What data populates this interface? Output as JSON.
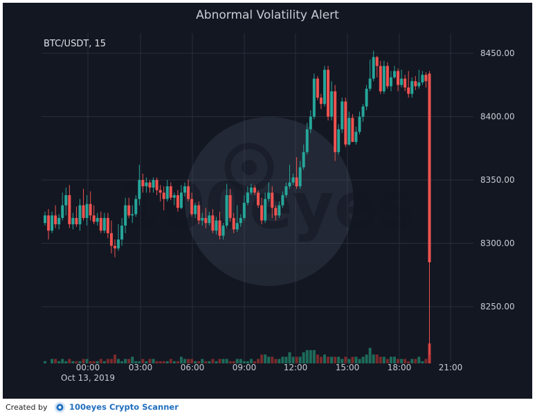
{
  "chart_data": {
    "type": "candlestick",
    "title": "Abnormal Volatility Alert",
    "symbol_label": "BTC/USDT, 15",
    "date_label": "Oct 13, 2019",
    "y_ticks": [
      "8450.00",
      "8400.00",
      "8350.00",
      "8300.00",
      "8250.00"
    ],
    "y_tick_values": [
      8450,
      8400,
      8350,
      8300,
      8250
    ],
    "x_ticks": [
      "00:00",
      "03:00",
      "06:00",
      "09:00",
      "12:00",
      "15:00",
      "18:00",
      "21:00"
    ],
    "ylim": [
      8209,
      8456
    ],
    "grid": true,
    "watermark": "100eyes",
    "colors": {
      "up": "#26a69a",
      "down": "#ef5350",
      "background": "#131722",
      "grid": "#2a2e39",
      "text": "#c9ccd3"
    },
    "candles": [
      [
        8316,
        8322,
        8314,
        8325,
        8311,
        1
      ],
      [
        8322,
        8310,
        8303,
        8327,
        8301,
        0
      ],
      [
        8310,
        8322,
        8308,
        8325,
        8305,
        2
      ],
      [
        8322,
        8315,
        8312,
        8330,
        8310,
        2
      ],
      [
        8315,
        8320,
        8311,
        8323,
        8307,
        1
      ],
      [
        8320,
        8330,
        8318,
        8340,
        8316,
        2
      ],
      [
        8330,
        8338,
        8322,
        8344,
        8320,
        1
      ],
      [
        8338,
        8315,
        8312,
        8346,
        8310,
        2
      ],
      [
        8315,
        8320,
        8311,
        8324,
        8311,
        1
      ],
      [
        8320,
        8315,
        8313,
        8329,
        8310,
        1
      ],
      [
        8315,
        8330,
        8310,
        8335,
        8308,
        1
      ],
      [
        8330,
        8320,
        8318,
        8343,
        8316,
        2
      ],
      [
        8320,
        8331,
        8314,
        8338,
        8312,
        2
      ],
      [
        8331,
        8322,
        8318,
        8341,
        8316,
        1
      ],
      [
        8322,
        8317,
        8315,
        8330,
        8312,
        1
      ],
      [
        8317,
        8320,
        8314,
        8324,
        8312,
        1
      ],
      [
        8320,
        8310,
        8308,
        8325,
        8305,
        2
      ],
      [
        8310,
        8320,
        8308,
        8324,
        8306,
        1
      ],
      [
        8320,
        8308,
        8304,
        8324,
        8302,
        2
      ],
      [
        8308,
        8298,
        8292,
        8318,
        8290,
        2
      ],
      [
        8298,
        8296,
        8289,
        8303,
        8278,
        4
      ],
      [
        8296,
        8303,
        8294,
        8315,
        8292,
        2
      ],
      [
        8303,
        8314,
        8298,
        8320,
        8296,
        1
      ],
      [
        8314,
        8330,
        8308,
        8336,
        8306,
        2
      ],
      [
        8330,
        8322,
        8320,
        8336,
        8318,
        2
      ],
      [
        8322,
        8323,
        8316,
        8330,
        8314,
        3
      ],
      [
        8323,
        8335,
        8321,
        8338,
        8320,
        1
      ],
      [
        8335,
        8350,
        8330,
        8362,
        8328,
        1
      ],
      [
        8350,
        8345,
        8340,
        8355,
        8338,
        2
      ],
      [
        8345,
        8348,
        8340,
        8352,
        8338,
        1
      ],
      [
        8348,
        8344,
        8340,
        8350,
        8338,
        2
      ],
      [
        8344,
        8350,
        8340,
        8352,
        8338,
        2
      ],
      [
        8350,
        8342,
        8338,
        8352,
        8338,
        1
      ],
      [
        8342,
        8340,
        8333,
        8346,
        8332,
        1
      ],
      [
        8340,
        8335,
        8326,
        8345,
        8325,
        1
      ],
      [
        8335,
        8345,
        8333,
        8350,
        8331,
        1
      ],
      [
        8345,
        8336,
        8334,
        8348,
        8332,
        2
      ],
      [
        8336,
        8338,
        8330,
        8340,
        8328,
        1
      ],
      [
        8338,
        8328,
        8325,
        8342,
        8323,
        1
      ],
      [
        8328,
        8340,
        8327,
        8346,
        8325,
        3
      ],
      [
        8340,
        8345,
        8337,
        8348,
        8334,
        2
      ],
      [
        8345,
        8335,
        8333,
        8350,
        8330,
        2
      ],
      [
        8335,
        8323,
        8321,
        8340,
        8319,
        2
      ],
      [
        8323,
        8330,
        8320,
        8332,
        8318,
        1
      ],
      [
        8330,
        8318,
        8315,
        8333,
        8313,
        1
      ],
      [
        8318,
        8320,
        8314,
        8324,
        8312,
        2
      ],
      [
        8320,
        8316,
        8312,
        8328,
        8310,
        1
      ],
      [
        8316,
        8322,
        8314,
        8325,
        8312,
        1
      ],
      [
        8322,
        8310,
        8308,
        8327,
        8306,
        2
      ],
      [
        8310,
        8318,
        8307,
        8321,
        8305,
        1
      ],
      [
        8318,
        8306,
        8303,
        8325,
        8302,
        2
      ],
      [
        8306,
        8314,
        8303,
        8316,
        8301,
        2
      ],
      [
        8314,
        8338,
        8312,
        8347,
        8310,
        2
      ],
      [
        8338,
        8320,
        8317,
        8343,
        8315,
        1
      ],
      [
        8320,
        8311,
        8308,
        8324,
        8306,
        1
      ],
      [
        8311,
        8316,
        8309,
        8330,
        8307,
        2
      ],
      [
        8316,
        8320,
        8313,
        8323,
        8310,
        2
      ],
      [
        8320,
        8332,
        8318,
        8338,
        8316,
        1
      ],
      [
        8332,
        8340,
        8330,
        8345,
        8328,
        1
      ],
      [
        8340,
        8344,
        8338,
        8347,
        8336,
        2
      ],
      [
        8344,
        8340,
        8338,
        8346,
        8336,
        1
      ],
      [
        8340,
        8330,
        8328,
        8342,
        8326,
        2
      ],
      [
        8330,
        8318,
        8315,
        8336,
        8313,
        4
      ],
      [
        8318,
        8335,
        8316,
        8340,
        8314,
        4
      ],
      [
        8335,
        8340,
        8333,
        8348,
        8330,
        3
      ],
      [
        8340,
        8328,
        8320,
        8345,
        8318,
        3
      ],
      [
        8328,
        8322,
        8318,
        8330,
        8316,
        2
      ],
      [
        8322,
        8330,
        8320,
        8333,
        8318,
        2
      ],
      [
        8330,
        8338,
        8328,
        8341,
        8326,
        3
      ],
      [
        8338,
        8345,
        8336,
        8348,
        8334,
        3
      ],
      [
        8345,
        8348,
        8343,
        8362,
        8341,
        5
      ],
      [
        8348,
        8352,
        8346,
        8355,
        8344,
        3
      ],
      [
        8352,
        8345,
        8343,
        8368,
        8341,
        3
      ],
      [
        8345,
        8360,
        8343,
        8365,
        8341,
        3
      ],
      [
        8360,
        8372,
        8358,
        8378,
        8356,
        5
      ],
      [
        8372,
        8390,
        8370,
        8395,
        8368,
        6
      ],
      [
        8390,
        8400,
        8387,
        8405,
        8385,
        6
      ],
      [
        8400,
        8430,
        8398,
        8434,
        8396,
        6
      ],
      [
        8430,
        8415,
        8413,
        8432,
        8410,
        4
      ],
      [
        8415,
        8410,
        8406,
        8418,
        8404,
        3
      ],
      [
        8410,
        8437,
        8408,
        8440,
        8406,
        4
      ],
      [
        8437,
        8400,
        8397,
        8440,
        8395,
        3
      ],
      [
        8400,
        8420,
        8397,
        8428,
        8395,
        3
      ],
      [
        8420,
        8372,
        8365,
        8425,
        8362,
        3
      ],
      [
        8372,
        8390,
        8370,
        8394,
        8368,
        3
      ],
      [
        8390,
        8412,
        8387,
        8415,
        8385,
        2
      ],
      [
        8412,
        8378,
        8376,
        8415,
        8374,
        3
      ],
      [
        8378,
        8399,
        8377,
        8404,
        8375,
        2
      ],
      [
        8399,
        8380,
        8380,
        8402,
        8378,
        3
      ],
      [
        8380,
        8388,
        8378,
        8392,
        8376,
        3
      ],
      [
        8388,
        8400,
        8386,
        8404,
        8385,
        2
      ],
      [
        8400,
        8408,
        8396,
        8410,
        8394,
        3
      ],
      [
        8408,
        8422,
        8405,
        8425,
        8403,
        4
      ],
      [
        8422,
        8430,
        8420,
        8445,
        8418,
        7
      ],
      [
        8430,
        8447,
        8428,
        8452,
        8426,
        4
      ],
      [
        8447,
        8440,
        8431,
        8448,
        8427,
        4
      ],
      [
        8440,
        8420,
        8418,
        8444,
        8416,
        3
      ],
      [
        8420,
        8440,
        8418,
        8444,
        8416,
        3
      ],
      [
        8440,
        8424,
        8422,
        8443,
        8420,
        2
      ],
      [
        8424,
        8431,
        8420,
        8436,
        8418,
        3
      ],
      [
        8431,
        8436,
        8430,
        8440,
        8428,
        3
      ],
      [
        8436,
        8425,
        8420,
        8438,
        8418,
        2
      ],
      [
        8425,
        8430,
        8423,
        8437,
        8421,
        2
      ],
      [
        8430,
        8423,
        8420,
        8433,
        8418,
        2
      ],
      [
        8423,
        8418,
        8415,
        8436,
        8413,
        1
      ],
      [
        8418,
        8428,
        8415,
        8431,
        8413,
        2
      ],
      [
        8428,
        8424,
        8421,
        8432,
        8420,
        2
      ],
      [
        8424,
        8427,
        8422,
        8437,
        8420,
        3
      ],
      [
        8427,
        8433,
        8425,
        8436,
        8423,
        1
      ],
      [
        8433,
        8428,
        8423,
        8435,
        8421,
        2
      ],
      [
        8434,
        8285,
        8280,
        8436,
        8212,
        9
      ]
    ]
  }
}
